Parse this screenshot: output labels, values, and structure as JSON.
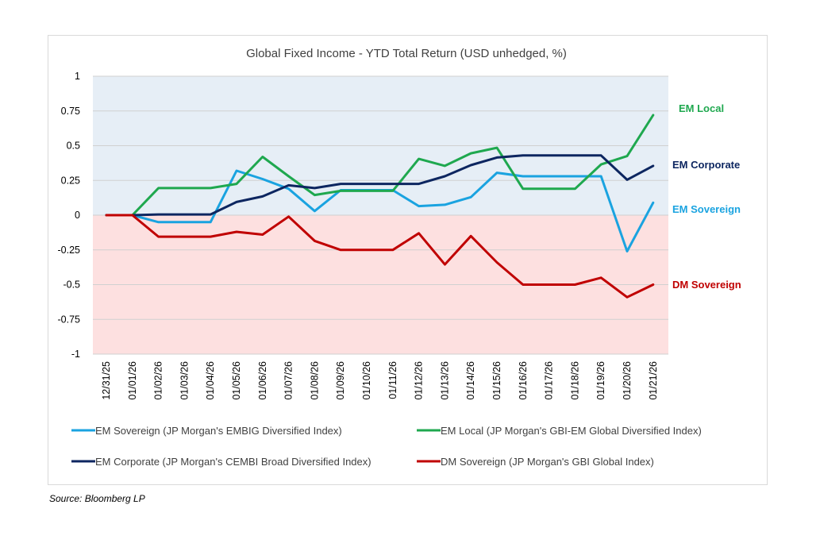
{
  "chart_data": {
    "type": "line",
    "title": "Global Fixed Income - YTD Total Return (USD unhedged, %)",
    "xlabel": "",
    "ylabel": "",
    "ylim": [
      -1,
      1
    ],
    "yticks": [
      "1",
      "0.75",
      "0.5",
      "0.25",
      "0",
      "-0.25",
      "-0.5",
      "-0.75",
      "-1"
    ],
    "ytick_values": [
      1,
      0.75,
      0.5,
      0.25,
      0,
      -0.25,
      -0.5,
      -0.75,
      -1
    ],
    "grid": true,
    "legend_position": "bottom",
    "background_bands": {
      "positive": "#e6eef6",
      "negative": "#fde0e0"
    },
    "categories": [
      "12/31/25",
      "01/01/26",
      "01/02/26",
      "01/03/26",
      "01/04/26",
      "01/05/26",
      "01/06/26",
      "01/07/26",
      "01/08/26",
      "01/09/26",
      "01/10/26",
      "01/11/26",
      "01/12/26",
      "01/13/26",
      "01/14/26",
      "01/15/26",
      "01/16/26",
      "01/17/26",
      "01/18/26",
      "01/19/26",
      "01/20/26",
      "01/21/26"
    ],
    "series": [
      {
        "name": "EM Sovereign (JP Morgan's EMBIG Diversified Index)",
        "label": "EM Sovereign",
        "color": "#1aa3e0",
        "values": [
          0,
          0,
          -0.05,
          -0.05,
          -0.05,
          0.32,
          0.26,
          0.19,
          0.03,
          0.18,
          0.18,
          0.18,
          0.065,
          0.075,
          0.13,
          0.305,
          0.28,
          0.28,
          0.28,
          0.28,
          -0.26,
          0.09
        ]
      },
      {
        "name": "EM Local (JP Morgan's GBI-EM Global Diversified Index)",
        "label": "EM Local",
        "color": "#1fa84f",
        "values": [
          0,
          0,
          0.195,
          0.195,
          0.195,
          0.225,
          0.42,
          0.28,
          0.145,
          0.175,
          0.175,
          0.175,
          0.405,
          0.355,
          0.445,
          0.485,
          0.19,
          0.19,
          0.19,
          0.365,
          0.425,
          0.72
        ]
      },
      {
        "name": "EM Corporate (JP Morgan's CEMBI Broad Diversified Index)",
        "label": "EM Corporate",
        "color": "#0d2660",
        "values": [
          0,
          0,
          0.005,
          0.005,
          0.005,
          0.095,
          0.135,
          0.215,
          0.195,
          0.225,
          0.225,
          0.225,
          0.225,
          0.28,
          0.36,
          0.415,
          0.43,
          0.43,
          0.43,
          0.43,
          0.255,
          0.355
        ]
      },
      {
        "name": "DM Sovereign (JP Morgan's GBI Global Index)",
        "label": "DM Sovereign",
        "color": "#c00000",
        "values": [
          0,
          0,
          -0.155,
          -0.155,
          -0.155,
          -0.12,
          -0.14,
          -0.01,
          -0.185,
          -0.25,
          -0.25,
          -0.25,
          -0.13,
          -0.355,
          -0.15,
          -0.34,
          -0.5,
          -0.5,
          -0.5,
          -0.45,
          -0.59,
          -0.5
        ]
      }
    ]
  },
  "source": "Source: Bloomberg LP"
}
